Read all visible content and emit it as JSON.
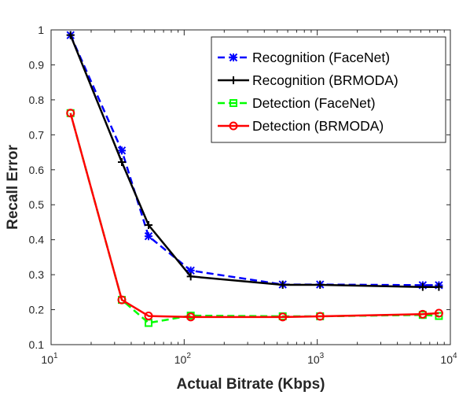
{
  "chart_data": {
    "type": "line",
    "title": "",
    "xlabel": "Actual Bitrate (Kbps)",
    "ylabel": "Recall Error",
    "x_scale": "log",
    "xlim": [
      10,
      10000
    ],
    "ylim": [
      0.1,
      1
    ],
    "x_ticks": [
      {
        "value": 10,
        "base": "10",
        "exp": "1"
      },
      {
        "value": 100,
        "base": "10",
        "exp": "2"
      },
      {
        "value": 1000,
        "base": "10",
        "exp": "3"
      },
      {
        "value": 10000,
        "base": "10",
        "exp": "4"
      }
    ],
    "y_ticks": [
      "0.1",
      "0.2",
      "0.3",
      "0.4",
      "0.5",
      "0.6",
      "0.7",
      "0.8",
      "0.9",
      "1"
    ],
    "grid": false,
    "legend_position": "top-right",
    "series": [
      {
        "name": "Recognition (FaceNet)",
        "color": "#0000ff",
        "line_style": "dashed",
        "marker": "asterisk",
        "x": [
          14,
          34,
          54,
          112,
          550,
          1050,
          6200,
          8200
        ],
        "y": [
          0.985,
          0.655,
          0.41,
          0.312,
          0.272,
          0.272,
          0.27,
          0.27
        ]
      },
      {
        "name": "Recognition (BRMODA)",
        "color": "#000000",
        "line_style": "solid",
        "marker": "plus",
        "x": [
          14,
          34,
          54,
          112,
          550,
          1050,
          6200,
          8200
        ],
        "y": [
          0.985,
          0.622,
          0.442,
          0.295,
          0.271,
          0.271,
          0.265,
          0.265
        ]
      },
      {
        "name": "Detection (FaceNet)",
        "color": "#00ff00",
        "line_style": "dashed",
        "marker": "square",
        "x": [
          14,
          34,
          54,
          112,
          550,
          1050,
          6200,
          8200
        ],
        "y": [
          0.762,
          0.228,
          0.162,
          0.183,
          0.181,
          0.181,
          0.185,
          0.182
        ]
      },
      {
        "name": "Detection (BRMODA)",
        "color": "#ff0000",
        "line_style": "solid",
        "marker": "circle",
        "x": [
          14,
          34,
          54,
          112,
          550,
          1050,
          6200,
          8200
        ],
        "y": [
          0.762,
          0.228,
          0.182,
          0.179,
          0.179,
          0.181,
          0.187,
          0.19
        ]
      }
    ]
  }
}
